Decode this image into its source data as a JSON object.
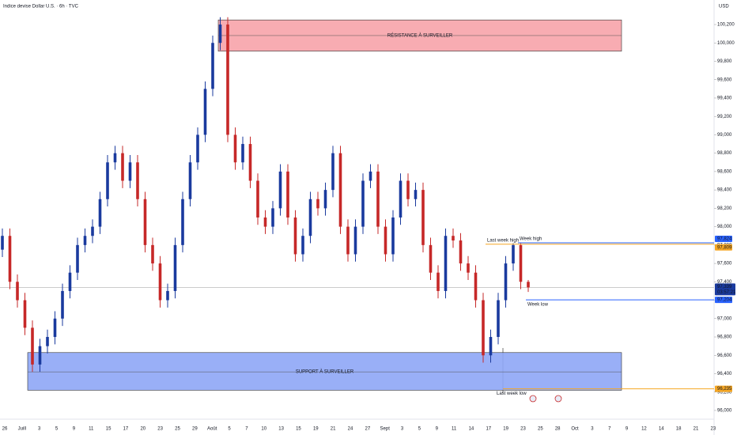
{
  "chart_data": {
    "type": "candlestick",
    "title": "Indice devise Dollar U.S. · 6h · TVC",
    "currency": "USD",
    "x_labels": [
      "26",
      "Juill",
      "3",
      "5",
      "9",
      "11",
      "15",
      "17",
      "20",
      "23",
      "25",
      "29",
      "Août",
      "5",
      "7",
      "10",
      "13",
      "15",
      "19",
      "21",
      "24",
      "27",
      "Sept",
      "3",
      "5",
      "9",
      "11",
      "14",
      "17",
      "19",
      "23",
      "25",
      "28",
      "Oct",
      "3",
      "7",
      "9",
      "12",
      "14",
      "18",
      "21",
      "23"
    ],
    "open": [
      97.75,
      97.9,
      97.4,
      97.2,
      96.9,
      96.5,
      96.7,
      96.8,
      97.0,
      97.3,
      97.5,
      97.8,
      97.9,
      98.0,
      98.3,
      98.7,
      98.8,
      98.5,
      98.7,
      98.3,
      97.8,
      97.6,
      97.2,
      97.3,
      97.8,
      98.3,
      98.7,
      99.0,
      99.5,
      100.0,
      100.2,
      99.0,
      98.7,
      98.9,
      98.5,
      98.1,
      98.0,
      98.2,
      98.6,
      98.1,
      97.7,
      97.9,
      98.3,
      98.2,
      98.4,
      98.8,
      98.0,
      97.7,
      98.0,
      98.5,
      98.6,
      98.0,
      97.7,
      98.1,
      98.5,
      98.3,
      98.4,
      97.8,
      97.5,
      97.3,
      97.9,
      97.85,
      97.6,
      97.5,
      97.2,
      96.6,
      96.8,
      97.2,
      97.6,
      97.8,
      97.4
    ],
    "high": [
      97.98,
      97.98,
      97.48,
      97.28,
      96.98,
      96.78,
      96.88,
      97.08,
      97.38,
      97.58,
      97.88,
      97.98,
      98.08,
      98.38,
      98.78,
      98.88,
      98.88,
      98.78,
      98.78,
      98.38,
      97.88,
      97.68,
      97.38,
      97.88,
      98.38,
      98.78,
      99.08,
      99.58,
      100.08,
      100.28,
      100.28,
      99.08,
      98.98,
      98.98,
      98.58,
      98.18,
      98.28,
      98.68,
      98.68,
      98.18,
      97.98,
      98.38,
      98.38,
      98.48,
      98.88,
      98.88,
      98.08,
      98.08,
      98.58,
      98.68,
      98.68,
      98.08,
      98.18,
      98.58,
      98.58,
      98.48,
      98.48,
      97.88,
      97.58,
      97.98,
      97.98,
      97.93,
      97.68,
      97.58,
      97.28,
      96.88,
      97.28,
      97.68,
      97.82,
      97.82,
      97.42
    ],
    "low": [
      97.67,
      97.32,
      97.12,
      96.82,
      96.42,
      96.42,
      96.62,
      96.72,
      96.92,
      97.22,
      97.42,
      97.72,
      97.82,
      97.92,
      98.22,
      98.62,
      98.42,
      98.42,
      98.22,
      97.72,
      97.52,
      97.12,
      97.12,
      97.22,
      97.72,
      98.22,
      98.62,
      98.92,
      99.42,
      99.92,
      98.92,
      98.62,
      98.62,
      98.42,
      98.02,
      97.92,
      97.92,
      98.12,
      98.02,
      97.62,
      97.62,
      97.82,
      98.12,
      98.12,
      98.32,
      97.92,
      97.62,
      97.62,
      97.92,
      98.42,
      97.92,
      97.62,
      97.62,
      98.02,
      98.22,
      98.22,
      97.72,
      97.42,
      97.22,
      97.22,
      97.77,
      97.52,
      97.42,
      97.12,
      96.52,
      96.52,
      96.72,
      97.12,
      97.52,
      97.32,
      97.29
    ],
    "close": [
      97.9,
      97.4,
      97.2,
      96.9,
      96.5,
      96.7,
      96.8,
      97.0,
      97.3,
      97.5,
      97.8,
      97.9,
      98.0,
      98.3,
      98.7,
      98.8,
      98.5,
      98.7,
      98.3,
      97.8,
      97.6,
      97.2,
      97.3,
      97.8,
      98.3,
      98.7,
      99.0,
      99.5,
      100.0,
      100.2,
      99.0,
      98.7,
      98.9,
      98.5,
      98.1,
      98.0,
      98.2,
      98.6,
      98.1,
      97.7,
      97.9,
      98.3,
      98.2,
      98.4,
      98.8,
      98.0,
      97.7,
      98.0,
      98.5,
      98.6,
      98.0,
      97.7,
      98.1,
      98.5,
      98.3,
      98.4,
      97.8,
      97.5,
      97.3,
      97.9,
      97.85,
      97.6,
      97.5,
      97.2,
      96.6,
      96.8,
      97.2,
      97.6,
      97.8,
      97.4,
      97.339
    ],
    "up_color": "#1a3a9e",
    "down_color": "#c62828",
    "ylim": [
      95.905,
      100.467
    ],
    "yticks": [
      {
        "value": 96.0,
        "label": "96,000"
      },
      {
        "value": 96.2,
        "label": "96,200"
      },
      {
        "value": 96.4,
        "label": "96,400"
      },
      {
        "value": 96.6,
        "label": "96,600"
      },
      {
        "value": 96.8,
        "label": "96,800"
      },
      {
        "value": 97.0,
        "label": "97,000"
      },
      {
        "value": 97.2,
        "label": "97,200"
      },
      {
        "value": 97.4,
        "label": "97,400"
      },
      {
        "value": 97.6,
        "label": "97,600"
      },
      {
        "value": 97.8,
        "label": "97,800"
      },
      {
        "value": 98.0,
        "label": "98,000"
      },
      {
        "value": 98.2,
        "label": "98,200"
      },
      {
        "value": 98.4,
        "label": "98,400"
      },
      {
        "value": 98.6,
        "label": "98,600"
      },
      {
        "value": 98.8,
        "label": "98,800"
      },
      {
        "value": 99.0,
        "label": "99,000"
      },
      {
        "value": 99.2,
        "label": "99,200"
      },
      {
        "value": 99.4,
        "label": "99,400"
      },
      {
        "value": 99.6,
        "label": "99,600"
      },
      {
        "value": 99.8,
        "label": "99,800"
      },
      {
        "value": 100.0,
        "label": "100,000"
      },
      {
        "value": 100.2,
        "label": "100,200"
      }
    ],
    "zones": [
      {
        "label": "RÉSISTANCE À SURVEILLER",
        "top": 100.25,
        "bottom": 99.91,
        "mid": 100.08,
        "color": "#f7a3aa"
      },
      {
        "label": "SUPPORT À SURVEILLER",
        "top": 96.63,
        "bottom": 96.22,
        "mid": 96.42,
        "color": "#8ea6f6"
      }
    ],
    "levels": [
      {
        "name": "Week high",
        "value": 97.824,
        "label": "97,824",
        "color": "#2962ff"
      },
      {
        "name": "Last week high",
        "value": 97.809,
        "label": "97,809",
        "color": "#f5a623"
      },
      {
        "name": "Week low",
        "value": 97.204,
        "label": "97,204",
        "color": "#2962ff"
      },
      {
        "name": "Last week low",
        "value": 96.235,
        "label": "96,235",
        "color": "#f5a623"
      }
    ],
    "last_price": {
      "value": 97.339,
      "label": "97,339",
      "countdown": "03:57:21",
      "color": "#1a3a9e"
    }
  }
}
